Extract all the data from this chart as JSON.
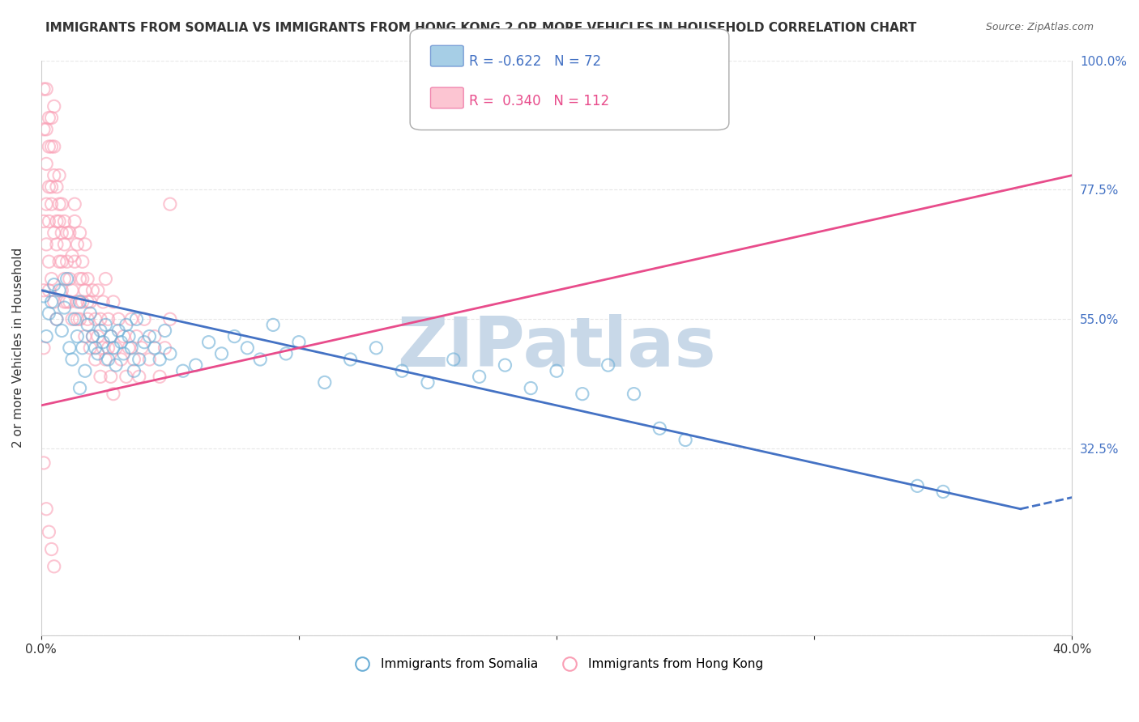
{
  "title": "IMMIGRANTS FROM SOMALIA VS IMMIGRANTS FROM HONG KONG 2 OR MORE VEHICLES IN HOUSEHOLD CORRELATION CHART",
  "source": "Source: ZipAtlas.com",
  "ylabel": "2 or more Vehicles in Household",
  "xlabel": "",
  "xlim": [
    0.0,
    0.4
  ],
  "ylim": [
    0.0,
    1.0
  ],
  "xticks": [
    0.0,
    0.1,
    0.2,
    0.3,
    0.4
  ],
  "xticklabels": [
    "0.0%",
    "",
    "",
    "",
    "40.0%"
  ],
  "yticks": [
    0.0,
    0.325,
    0.55,
    0.775,
    1.0
  ],
  "yticklabels": [
    "",
    "32.5%",
    "55.0%",
    "77.5%",
    "100.0%"
  ],
  "somalia_color": "#6baed6",
  "hongkong_color": "#fa9fb5",
  "somalia_R": -0.622,
  "somalia_N": 72,
  "hongkong_R": 0.34,
  "hongkong_N": 112,
  "legend_somalia": "Immigrants from Somalia",
  "legend_hongkong": "Immigrants from Hong Kong",
  "watermark": "ZIPatlas",
  "watermark_color": "#c8d8e8",
  "background_color": "#ffffff",
  "grid_color": "#dddddd",
  "somalia_points": [
    [
      0.002,
      0.52
    ],
    [
      0.004,
      0.58
    ],
    [
      0.005,
      0.61
    ],
    [
      0.006,
      0.55
    ],
    [
      0.007,
      0.6
    ],
    [
      0.008,
      0.53
    ],
    [
      0.009,
      0.57
    ],
    [
      0.01,
      0.62
    ],
    [
      0.011,
      0.5
    ],
    [
      0.012,
      0.48
    ],
    [
      0.013,
      0.55
    ],
    [
      0.014,
      0.52
    ],
    [
      0.015,
      0.58
    ],
    [
      0.016,
      0.5
    ],
    [
      0.017,
      0.46
    ],
    [
      0.018,
      0.54
    ],
    [
      0.019,
      0.56
    ],
    [
      0.02,
      0.52
    ],
    [
      0.021,
      0.5
    ],
    [
      0.022,
      0.49
    ],
    [
      0.023,
      0.53
    ],
    [
      0.024,
      0.51
    ],
    [
      0.025,
      0.54
    ],
    [
      0.026,
      0.48
    ],
    [
      0.027,
      0.52
    ],
    [
      0.028,
      0.5
    ],
    [
      0.029,
      0.47
    ],
    [
      0.03,
      0.53
    ],
    [
      0.031,
      0.51
    ],
    [
      0.032,
      0.49
    ],
    [
      0.033,
      0.54
    ],
    [
      0.034,
      0.52
    ],
    [
      0.035,
      0.5
    ],
    [
      0.036,
      0.46
    ],
    [
      0.037,
      0.55
    ],
    [
      0.038,
      0.48
    ],
    [
      0.04,
      0.51
    ],
    [
      0.042,
      0.52
    ],
    [
      0.044,
      0.5
    ],
    [
      0.046,
      0.48
    ],
    [
      0.048,
      0.53
    ],
    [
      0.05,
      0.49
    ],
    [
      0.055,
      0.46
    ],
    [
      0.06,
      0.47
    ],
    [
      0.065,
      0.51
    ],
    [
      0.07,
      0.49
    ],
    [
      0.075,
      0.52
    ],
    [
      0.08,
      0.5
    ],
    [
      0.085,
      0.48
    ],
    [
      0.09,
      0.54
    ],
    [
      0.095,
      0.49
    ],
    [
      0.1,
      0.51
    ],
    [
      0.11,
      0.44
    ],
    [
      0.12,
      0.48
    ],
    [
      0.13,
      0.5
    ],
    [
      0.14,
      0.46
    ],
    [
      0.15,
      0.44
    ],
    [
      0.16,
      0.48
    ],
    [
      0.17,
      0.45
    ],
    [
      0.18,
      0.47
    ],
    [
      0.19,
      0.43
    ],
    [
      0.2,
      0.46
    ],
    [
      0.21,
      0.42
    ],
    [
      0.22,
      0.47
    ],
    [
      0.23,
      0.42
    ],
    [
      0.24,
      0.36
    ],
    [
      0.25,
      0.34
    ],
    [
      0.34,
      0.26
    ],
    [
      0.35,
      0.25
    ],
    [
      0.001,
      0.59
    ],
    [
      0.003,
      0.56
    ],
    [
      0.015,
      0.43
    ]
  ],
  "hongkong_points": [
    [
      0.001,
      0.95
    ],
    [
      0.002,
      0.88
    ],
    [
      0.002,
      0.82
    ],
    [
      0.003,
      0.78
    ],
    [
      0.003,
      0.85
    ],
    [
      0.004,
      0.9
    ],
    [
      0.004,
      0.75
    ],
    [
      0.005,
      0.8
    ],
    [
      0.005,
      0.7
    ],
    [
      0.006,
      0.72
    ],
    [
      0.006,
      0.68
    ],
    [
      0.007,
      0.65
    ],
    [
      0.007,
      0.75
    ],
    [
      0.008,
      0.7
    ],
    [
      0.008,
      0.6
    ],
    [
      0.009,
      0.68
    ],
    [
      0.009,
      0.72
    ],
    [
      0.01,
      0.65
    ],
    [
      0.01,
      0.58
    ],
    [
      0.011,
      0.62
    ],
    [
      0.011,
      0.7
    ],
    [
      0.012,
      0.6
    ],
    [
      0.012,
      0.55
    ],
    [
      0.013,
      0.65
    ],
    [
      0.013,
      0.72
    ],
    [
      0.014,
      0.58
    ],
    [
      0.014,
      0.68
    ],
    [
      0.015,
      0.62
    ],
    [
      0.015,
      0.55
    ],
    [
      0.016,
      0.58
    ],
    [
      0.016,
      0.65
    ],
    [
      0.017,
      0.6
    ],
    [
      0.017,
      0.52
    ],
    [
      0.018,
      0.55
    ],
    [
      0.018,
      0.62
    ],
    [
      0.019,
      0.5
    ],
    [
      0.019,
      0.58
    ],
    [
      0.02,
      0.52
    ],
    [
      0.02,
      0.6
    ],
    [
      0.021,
      0.55
    ],
    [
      0.021,
      0.48
    ],
    [
      0.022,
      0.52
    ],
    [
      0.022,
      0.6
    ],
    [
      0.023,
      0.45
    ],
    [
      0.023,
      0.55
    ],
    [
      0.024,
      0.5
    ],
    [
      0.024,
      0.58
    ],
    [
      0.025,
      0.48
    ],
    [
      0.025,
      0.62
    ],
    [
      0.026,
      0.5
    ],
    [
      0.026,
      0.55
    ],
    [
      0.027,
      0.52
    ],
    [
      0.027,
      0.45
    ],
    [
      0.028,
      0.58
    ],
    [
      0.028,
      0.42
    ],
    [
      0.029,
      0.5
    ],
    [
      0.03,
      0.55
    ],
    [
      0.031,
      0.48
    ],
    [
      0.032,
      0.52
    ],
    [
      0.033,
      0.45
    ],
    [
      0.034,
      0.5
    ],
    [
      0.035,
      0.55
    ],
    [
      0.036,
      0.48
    ],
    [
      0.037,
      0.52
    ],
    [
      0.038,
      0.45
    ],
    [
      0.039,
      0.5
    ],
    [
      0.04,
      0.55
    ],
    [
      0.042,
      0.48
    ],
    [
      0.044,
      0.52
    ],
    [
      0.046,
      0.45
    ],
    [
      0.048,
      0.5
    ],
    [
      0.05,
      0.55
    ],
    [
      0.001,
      0.72
    ],
    [
      0.002,
      0.68
    ],
    [
      0.003,
      0.6
    ],
    [
      0.004,
      0.78
    ],
    [
      0.005,
      0.85
    ],
    [
      0.006,
      0.55
    ],
    [
      0.007,
      0.8
    ],
    [
      0.008,
      0.75
    ],
    [
      0.009,
      0.62
    ],
    [
      0.01,
      0.7
    ],
    [
      0.011,
      0.58
    ],
    [
      0.012,
      0.66
    ],
    [
      0.013,
      0.75
    ],
    [
      0.014,
      0.55
    ],
    [
      0.015,
      0.7
    ],
    [
      0.016,
      0.62
    ],
    [
      0.017,
      0.68
    ],
    [
      0.018,
      0.58
    ],
    [
      0.002,
      0.95
    ],
    [
      0.003,
      0.9
    ],
    [
      0.004,
      0.85
    ],
    [
      0.005,
      0.92
    ],
    [
      0.001,
      0.6
    ],
    [
      0.002,
      0.75
    ],
    [
      0.003,
      0.72
    ],
    [
      0.001,
      0.88
    ],
    [
      0.003,
      0.65
    ],
    [
      0.004,
      0.62
    ],
    [
      0.005,
      0.58
    ],
    [
      0.006,
      0.78
    ],
    [
      0.007,
      0.72
    ],
    [
      0.008,
      0.65
    ],
    [
      0.009,
      0.58
    ],
    [
      0.001,
      0.3
    ],
    [
      0.002,
      0.22
    ],
    [
      0.003,
      0.18
    ],
    [
      0.004,
      0.15
    ],
    [
      0.005,
      0.12
    ],
    [
      0.05,
      0.75
    ],
    [
      0.001,
      0.5
    ]
  ],
  "somalia_line_color": "#4472c4",
  "hongkong_line_color": "#e84c8b",
  "soma_line_x": [
    0.0,
    0.38
  ],
  "soma_line_y": [
    0.6,
    0.22
  ],
  "hk_line_x": [
    0.0,
    0.4
  ],
  "hk_line_y": [
    0.4,
    0.8
  ]
}
